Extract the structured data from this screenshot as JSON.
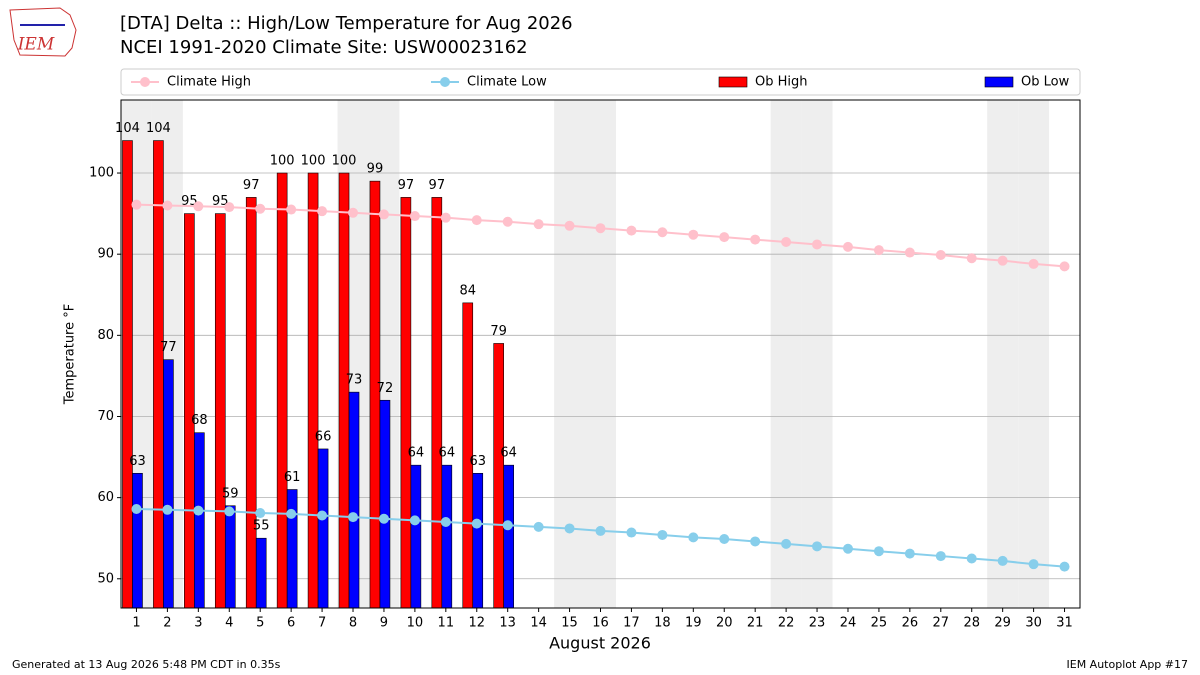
{
  "logo_text": "IEM",
  "chart_data": {
    "type": "bar",
    "title": "[DTA] Delta :: High/Low Temperature for Aug 2026",
    "subtitle": "NCEI 1991-2020 Climate Site: USW00023162",
    "y_label": "Temperature °F",
    "x_label": "August 2026",
    "x": [
      1,
      2,
      3,
      4,
      5,
      6,
      7,
      8,
      9,
      10,
      11,
      12,
      13,
      14,
      15,
      16,
      17,
      18,
      19,
      20,
      21,
      22,
      23,
      24,
      25,
      26,
      27,
      28,
      29,
      30,
      31
    ],
    "xlim": [
      0.5,
      31.5
    ],
    "xticks": [
      1,
      2,
      3,
      4,
      5,
      6,
      7,
      8,
      9,
      10,
      11,
      12,
      13,
      14,
      15,
      16,
      17,
      18,
      19,
      20,
      21,
      22,
      23,
      24,
      25,
      26,
      27,
      28,
      29,
      30,
      31
    ],
    "ylim": [
      46.4,
      109
    ],
    "yticks": [
      50,
      60,
      70,
      80,
      90,
      100
    ],
    "grid": true,
    "legend": "top",
    "weekends": [
      1,
      2,
      8,
      9,
      15,
      16,
      22,
      23,
      29,
      30
    ],
    "series": [
      {
        "name": "Climate High",
        "type": "line",
        "color": "#ffc0cb",
        "values": [
          96.1,
          96.0,
          95.9,
          95.8,
          95.6,
          95.5,
          95.3,
          95.1,
          94.9,
          94.7,
          94.5,
          94.2,
          94.0,
          93.7,
          93.5,
          93.2,
          92.9,
          92.7,
          92.4,
          92.1,
          91.8,
          91.5,
          91.2,
          90.9,
          90.5,
          90.2,
          89.9,
          89.5,
          89.2,
          88.8,
          88.5
        ]
      },
      {
        "name": "Climate Low",
        "type": "line",
        "color": "#87ceeb",
        "values": [
          58.6,
          58.5,
          58.4,
          58.3,
          58.1,
          58.0,
          57.8,
          57.6,
          57.4,
          57.2,
          57.0,
          56.8,
          56.6,
          56.4,
          56.2,
          55.9,
          55.7,
          55.4,
          55.1,
          54.9,
          54.6,
          54.3,
          54.0,
          53.7,
          53.4,
          53.1,
          52.8,
          52.5,
          52.2,
          51.8,
          51.5
        ]
      },
      {
        "name": "Ob High",
        "type": "bar",
        "color": "#ff0000",
        "values": [
          104,
          104,
          95,
          95,
          97,
          100,
          100,
          100,
          99,
          97,
          97,
          84,
          79,
          null,
          null,
          null,
          null,
          null,
          null,
          null,
          null,
          null,
          null,
          null,
          null,
          null,
          null,
          null,
          null,
          null,
          null
        ]
      },
      {
        "name": "Ob Low",
        "type": "bar",
        "color": "#0000ff",
        "values": [
          63,
          77,
          68,
          59,
          55,
          61,
          66,
          73,
          72,
          64,
          64,
          63,
          64,
          null,
          null,
          null,
          null,
          null,
          null,
          null,
          null,
          null,
          null,
          null,
          null,
          null,
          null,
          null,
          null,
          null,
          null
        ]
      }
    ],
    "footer_left": "Generated at 13 Aug 2026 5:48 PM CDT in 0.35s",
    "footer_right": "IEM Autoplot App #17"
  }
}
